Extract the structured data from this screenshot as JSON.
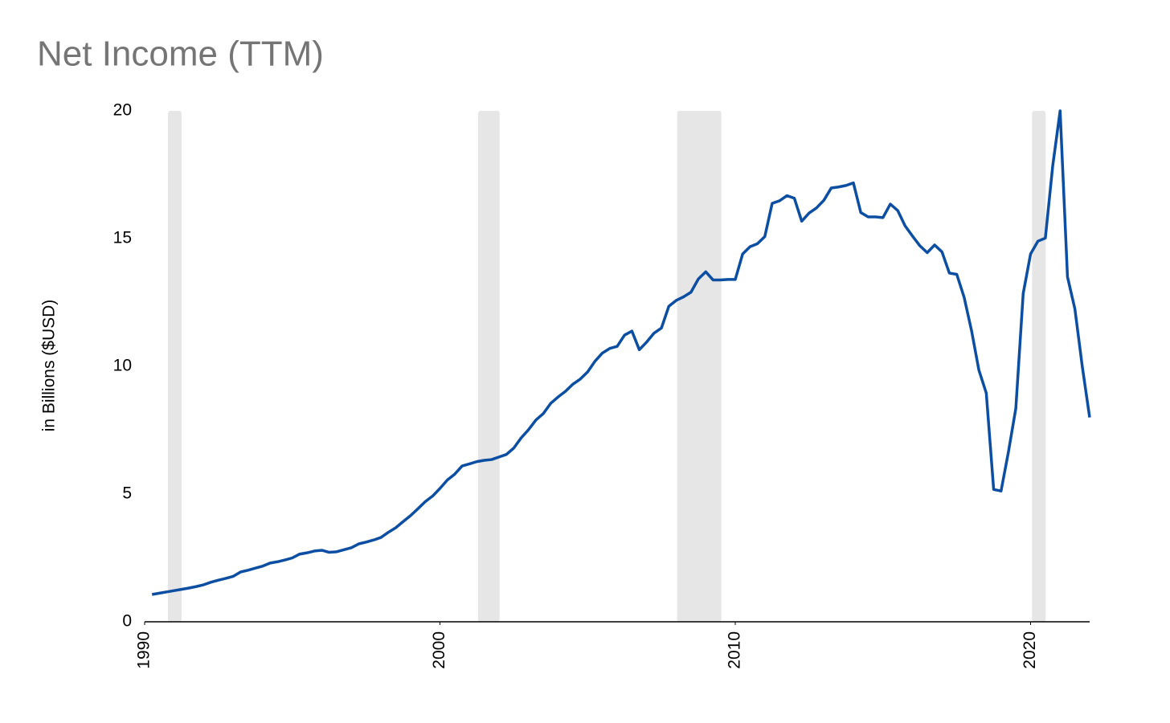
{
  "chart_data": {
    "type": "line",
    "title": "Net Income (TTM)",
    "y_label": "in Billions ($USD)",
    "xlim": [
      1990,
      2022
    ],
    "xticks": [
      1990,
      2000,
      2010,
      2020
    ],
    "ylim": [
      0,
      20
    ],
    "yticks": [
      0,
      5,
      10,
      15,
      20
    ],
    "grid": false,
    "shaded_ranges": [
      [
        1990.79,
        1991.25
      ],
      [
        2001.29,
        2002.02
      ],
      [
        2008.03,
        2009.53
      ],
      [
        2020.05,
        2020.51
      ]
    ],
    "shade_color": "#e6e6e6",
    "x": [
      1990.25,
      1990.5,
      1990.75,
      1991,
      1991.25,
      1991.5,
      1991.75,
      1992,
      1992.25,
      1992.5,
      1992.75,
      1993,
      1993.25,
      1993.5,
      1993.75,
      1994,
      1994.25,
      1994.5,
      1994.75,
      1995,
      1995.25,
      1995.5,
      1995.75,
      1996,
      1996.25,
      1996.5,
      1996.75,
      1997,
      1997.25,
      1997.5,
      1997.75,
      1998,
      1998.25,
      1998.5,
      1998.75,
      1999,
      1999.25,
      1999.5,
      1999.75,
      2000,
      2000.25,
      2000.5,
      2000.75,
      2001,
      2001.25,
      2001.5,
      2001.75,
      2002,
      2002.25,
      2002.5,
      2002.75,
      2003,
      2003.25,
      2003.5,
      2003.75,
      2004,
      2004.25,
      2004.5,
      2004.75,
      2005,
      2005.25,
      2005.5,
      2005.75,
      2006,
      2006.25,
      2006.5,
      2006.75,
      2007,
      2007.25,
      2007.5,
      2007.75,
      2008,
      2008.25,
      2008.5,
      2008.75,
      2009,
      2009.25,
      2009.5,
      2009.75,
      2010,
      2010.25,
      2010.5,
      2010.75,
      2011,
      2011.25,
      2011.5,
      2011.75,
      2012,
      2012.25,
      2012.5,
      2012.75,
      2013,
      2013.25,
      2013.5,
      2013.75,
      2014,
      2014.25,
      2014.5,
      2014.75,
      2015,
      2015.25,
      2015.5,
      2015.75,
      2016,
      2016.25,
      2016.5,
      2016.75,
      2017,
      2017.25,
      2017.5,
      2017.75,
      2018,
      2018.25,
      2018.5,
      2018.75,
      2019,
      2019.25,
      2019.5,
      2019.75,
      2020,
      2020.25,
      2020.5,
      2020.75,
      2021,
      2021.25,
      2021.5,
      2021.75,
      2022
    ],
    "series": [
      {
        "name": "Net Income",
        "color": "#0b4ea2",
        "values": [
          1.07,
          1.12,
          1.17,
          1.22,
          1.27,
          1.32,
          1.38,
          1.45,
          1.55,
          1.63,
          1.7,
          1.78,
          1.95,
          2.02,
          2.1,
          2.18,
          2.3,
          2.35,
          2.42,
          2.5,
          2.65,
          2.7,
          2.77,
          2.8,
          2.72,
          2.74,
          2.82,
          2.9,
          3.05,
          3.12,
          3.2,
          3.3,
          3.5,
          3.68,
          3.92,
          4.15,
          4.42,
          4.7,
          4.92,
          5.22,
          5.55,
          5.78,
          6.1,
          6.18,
          6.27,
          6.32,
          6.35,
          6.45,
          6.55,
          6.8,
          7.2,
          7.52,
          7.9,
          8.15,
          8.55,
          8.8,
          9.02,
          9.3,
          9.5,
          9.78,
          10.2,
          10.52,
          10.7,
          10.78,
          11.22,
          11.38,
          10.65,
          10.95,
          11.3,
          11.5,
          12.35,
          12.58,
          12.72,
          12.9,
          13.42,
          13.7,
          13.38,
          13.38,
          13.4,
          13.4,
          14.4,
          14.68,
          14.8,
          15.08,
          16.38,
          16.48,
          16.68,
          16.58,
          15.68,
          16.0,
          16.2,
          16.5,
          16.98,
          17.02,
          17.08,
          17.18,
          16.02,
          15.85,
          15.85,
          15.82,
          16.35,
          16.1,
          15.5,
          15.1,
          14.72,
          14.45,
          14.75,
          14.48,
          13.65,
          13.6,
          12.7,
          11.4,
          9.85,
          8.95,
          5.18,
          5.12,
          6.65,
          8.35,
          12.85,
          14.4,
          14.9,
          15.02,
          17.85,
          20.0,
          13.5,
          12.25,
          10.0,
          8.0
        ]
      }
    ]
  }
}
